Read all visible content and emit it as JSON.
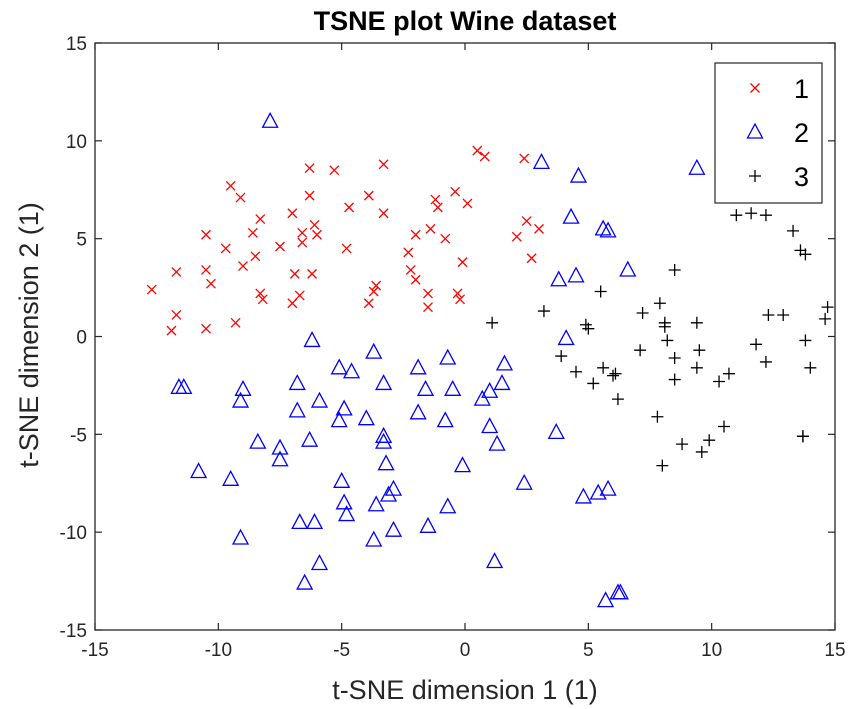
{
  "chart_data": {
    "type": "scatter",
    "title": "TSNE plot Wine dataset",
    "xlabel": "t-SNE dimension 1 (1)",
    "ylabel": "t-SNE dimension 2 (1)",
    "xlim": [
      -15,
      15
    ],
    "ylim": [
      -15,
      15
    ],
    "xticks": [
      -15,
      -10,
      -5,
      0,
      5,
      10,
      15
    ],
    "yticks": [
      -15,
      -10,
      -5,
      0,
      5,
      10,
      15
    ],
    "grid": false,
    "legend_position": "top-right",
    "series": [
      {
        "name": "1",
        "marker": "x",
        "color": "#ff0000",
        "points": [
          [
            -12.7,
            2.4
          ],
          [
            -11.9,
            0.3
          ],
          [
            -11.7,
            3.3
          ],
          [
            -11.7,
            1.1
          ],
          [
            -10.5,
            5.2
          ],
          [
            -10.5,
            3.4
          ],
          [
            -10.5,
            0.4
          ],
          [
            -10.3,
            2.7
          ],
          [
            -9.7,
            4.5
          ],
          [
            -9.5,
            7.7
          ],
          [
            -9.3,
            0.7
          ],
          [
            -9.1,
            7.1
          ],
          [
            -9.0,
            3.6
          ],
          [
            -8.6,
            5.3
          ],
          [
            -8.5,
            4.1
          ],
          [
            -8.3,
            6.0
          ],
          [
            -8.3,
            2.2
          ],
          [
            -8.2,
            1.9
          ],
          [
            -7.5,
            4.6
          ],
          [
            -7.0,
            1.7
          ],
          [
            -7.0,
            6.3
          ],
          [
            -6.9,
            3.2
          ],
          [
            -6.7,
            2.1
          ],
          [
            -6.6,
            5.3
          ],
          [
            -6.6,
            4.8
          ],
          [
            -6.3,
            8.6
          ],
          [
            -6.3,
            7.2
          ],
          [
            -6.2,
            3.2
          ],
          [
            -6.1,
            5.7
          ],
          [
            -6.0,
            5.2
          ],
          [
            -5.3,
            8.5
          ],
          [
            -4.8,
            4.5
          ],
          [
            -4.7,
            6.6
          ],
          [
            -3.9,
            7.2
          ],
          [
            -3.9,
            1.7
          ],
          [
            -3.7,
            2.3
          ],
          [
            -3.6,
            2.6
          ],
          [
            -3.3,
            8.8
          ],
          [
            -3.3,
            6.3
          ],
          [
            -2.3,
            4.3
          ],
          [
            -2.2,
            3.4
          ],
          [
            -2.0,
            2.9
          ],
          [
            -2.0,
            5.2
          ],
          [
            -1.5,
            2.2
          ],
          [
            -1.5,
            1.5
          ],
          [
            -1.4,
            5.5
          ],
          [
            -1.2,
            7.0
          ],
          [
            -1.1,
            6.6
          ],
          [
            -0.8,
            5.0
          ],
          [
            -0.4,
            7.4
          ],
          [
            -0.3,
            2.2
          ],
          [
            -0.2,
            1.9
          ],
          [
            -0.1,
            3.8
          ],
          [
            0.1,
            6.8
          ],
          [
            0.5,
            9.5
          ],
          [
            0.8,
            9.2
          ],
          [
            2.1,
            5.1
          ],
          [
            2.4,
            9.1
          ],
          [
            2.5,
            5.9
          ],
          [
            2.7,
            4.0
          ],
          [
            3.0,
            5.5
          ]
        ]
      },
      {
        "name": "2",
        "marker": "triangle",
        "color": "#0000ff",
        "points": [
          [
            -11.6,
            -2.6
          ],
          [
            -11.4,
            -2.6
          ],
          [
            -10.8,
            -6.9
          ],
          [
            -9.5,
            -7.3
          ],
          [
            -9.1,
            -10.3
          ],
          [
            -9.1,
            -3.3
          ],
          [
            -9.0,
            -2.7
          ],
          [
            -8.4,
            -5.4
          ],
          [
            -7.9,
            11.0
          ],
          [
            -7.5,
            -5.7
          ],
          [
            -7.5,
            -6.3
          ],
          [
            -6.8,
            -2.4
          ],
          [
            -6.8,
            -3.8
          ],
          [
            -6.7,
            -9.5
          ],
          [
            -6.5,
            -12.6
          ],
          [
            -6.3,
            -5.3
          ],
          [
            -6.2,
            -0.2
          ],
          [
            -6.1,
            -9.5
          ],
          [
            -5.9,
            -11.6
          ],
          [
            -5.9,
            -3.3
          ],
          [
            -5.1,
            -1.6
          ],
          [
            -5.1,
            -4.3
          ],
          [
            -5.0,
            -7.4
          ],
          [
            -4.9,
            -8.5
          ],
          [
            -4.9,
            -3.7
          ],
          [
            -4.8,
            -9.1
          ],
          [
            -4.6,
            -1.8
          ],
          [
            -4.0,
            -4.2
          ],
          [
            -3.7,
            -0.8
          ],
          [
            -3.7,
            -10.4
          ],
          [
            -3.6,
            -8.6
          ],
          [
            -3.3,
            -2.4
          ],
          [
            -3.3,
            -5.4
          ],
          [
            -3.3,
            -5.1
          ],
          [
            -3.2,
            -6.5
          ],
          [
            -3.1,
            -8.1
          ],
          [
            -2.9,
            -7.8
          ],
          [
            -2.9,
            -9.9
          ],
          [
            -1.9,
            -1.6
          ],
          [
            -1.9,
            -3.9
          ],
          [
            -1.6,
            -2.7
          ],
          [
            -1.5,
            -9.7
          ],
          [
            -0.8,
            -4.3
          ],
          [
            -0.7,
            -1.1
          ],
          [
            -0.7,
            -8.7
          ],
          [
            -0.5,
            -2.7
          ],
          [
            -0.1,
            -6.6
          ],
          [
            0.7,
            -3.2
          ],
          [
            1.0,
            -4.6
          ],
          [
            1.0,
            -2.8
          ],
          [
            1.2,
            -11.5
          ],
          [
            1.3,
            -5.5
          ],
          [
            1.5,
            -2.4
          ],
          [
            1.6,
            -1.4
          ],
          [
            2.4,
            -7.5
          ],
          [
            3.1,
            8.9
          ],
          [
            3.7,
            -4.9
          ],
          [
            3.8,
            2.9
          ],
          [
            4.1,
            -0.1
          ],
          [
            4.3,
            6.1
          ],
          [
            4.5,
            3.1
          ],
          [
            4.6,
            8.2
          ],
          [
            4.8,
            -8.2
          ],
          [
            5.4,
            -8.0
          ],
          [
            5.6,
            5.5
          ],
          [
            5.7,
            -13.5
          ],
          [
            5.8,
            5.4
          ],
          [
            5.8,
            -7.8
          ],
          [
            6.2,
            -13.1
          ],
          [
            6.3,
            -13.1
          ],
          [
            6.6,
            3.4
          ],
          [
            9.4,
            8.6
          ]
        ]
      },
      {
        "name": "3",
        "marker": "+",
        "color": "#000000",
        "points": [
          [
            1.1,
            0.7
          ],
          [
            3.2,
            1.3
          ],
          [
            3.9,
            -1.0
          ],
          [
            4.5,
            -1.8
          ],
          [
            4.9,
            0.6
          ],
          [
            5.0,
            0.4
          ],
          [
            5.2,
            -2.4
          ],
          [
            5.5,
            2.3
          ],
          [
            5.6,
            -1.6
          ],
          [
            6.0,
            -2.0
          ],
          [
            6.1,
            -1.9
          ],
          [
            6.2,
            -3.2
          ],
          [
            7.1,
            -0.7
          ],
          [
            7.2,
            1.2
          ],
          [
            7.8,
            -4.1
          ],
          [
            7.9,
            1.7
          ],
          [
            8.0,
            -6.6
          ],
          [
            8.1,
            0.7
          ],
          [
            8.1,
            0.5
          ],
          [
            8.2,
            -0.2
          ],
          [
            8.5,
            -1.1
          ],
          [
            8.5,
            -2.2
          ],
          [
            8.5,
            3.4
          ],
          [
            8.8,
            -5.5
          ],
          [
            9.4,
            -1.6
          ],
          [
            9.4,
            0.7
          ],
          [
            9.5,
            -0.7
          ],
          [
            9.6,
            -5.9
          ],
          [
            9.9,
            -5.3
          ],
          [
            10.3,
            -2.3
          ],
          [
            10.5,
            -4.6
          ],
          [
            10.7,
            -1.9
          ],
          [
            11.0,
            6.2
          ],
          [
            11.6,
            6.3
          ],
          [
            11.8,
            -0.4
          ],
          [
            12.2,
            6.2
          ],
          [
            12.2,
            -1.3
          ],
          [
            12.3,
            1.1
          ],
          [
            12.9,
            1.1
          ],
          [
            13.3,
            5.4
          ],
          [
            13.6,
            4.4
          ],
          [
            13.7,
            -5.1
          ],
          [
            13.7,
            -5.1
          ],
          [
            13.8,
            4.2
          ],
          [
            13.8,
            -0.2
          ],
          [
            14.0,
            -1.6
          ],
          [
            14.6,
            0.9
          ],
          [
            14.7,
            1.5
          ]
        ]
      }
    ]
  }
}
